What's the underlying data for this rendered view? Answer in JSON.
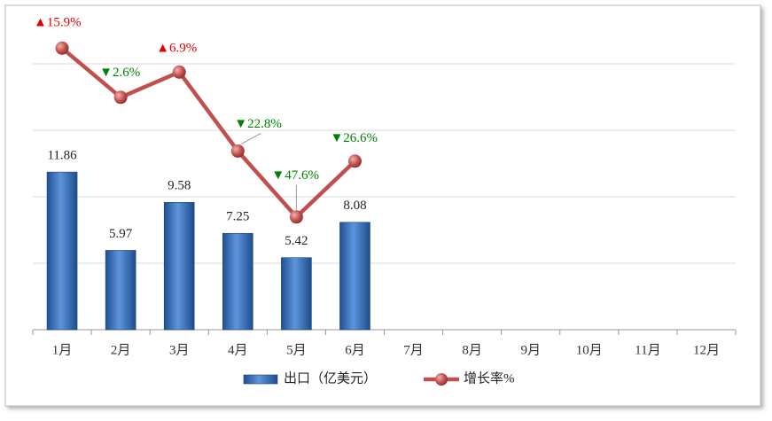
{
  "chart_data": {
    "type": "bar-line",
    "categories": [
      "1月",
      "2月",
      "3月",
      "4月",
      "5月",
      "6月",
      "7月",
      "8月",
      "9月",
      "10月",
      "11月",
      "12月"
    ],
    "series": [
      {
        "name": "出口（亿美元）",
        "type": "bar",
        "color": "#3d72b8",
        "values": [
          11.86,
          5.97,
          9.58,
          7.25,
          5.42,
          8.08,
          null,
          null,
          null,
          null,
          null,
          null
        ]
      },
      {
        "name": "增长率%",
        "type": "line",
        "axis": "y2",
        "color": "#c0504d",
        "values": [
          15.9,
          -2.6,
          6.9,
          -22.8,
          -47.6,
          -26.6,
          null,
          null,
          null,
          null,
          null,
          null
        ],
        "value_labels": [
          "▲15.9%",
          "▼2.6%",
          "▲6.9%",
          "▼22.8%",
          "▼47.6%",
          "▼26.6%",
          null,
          null,
          null,
          null,
          null,
          null
        ]
      }
    ],
    "ylim": [
      0,
      24
    ],
    "yticks": [
      0,
      5,
      10,
      15,
      20
    ],
    "y2lim": [
      -90,
      30
    ],
    "grid": true,
    "legend": "bottom"
  }
}
